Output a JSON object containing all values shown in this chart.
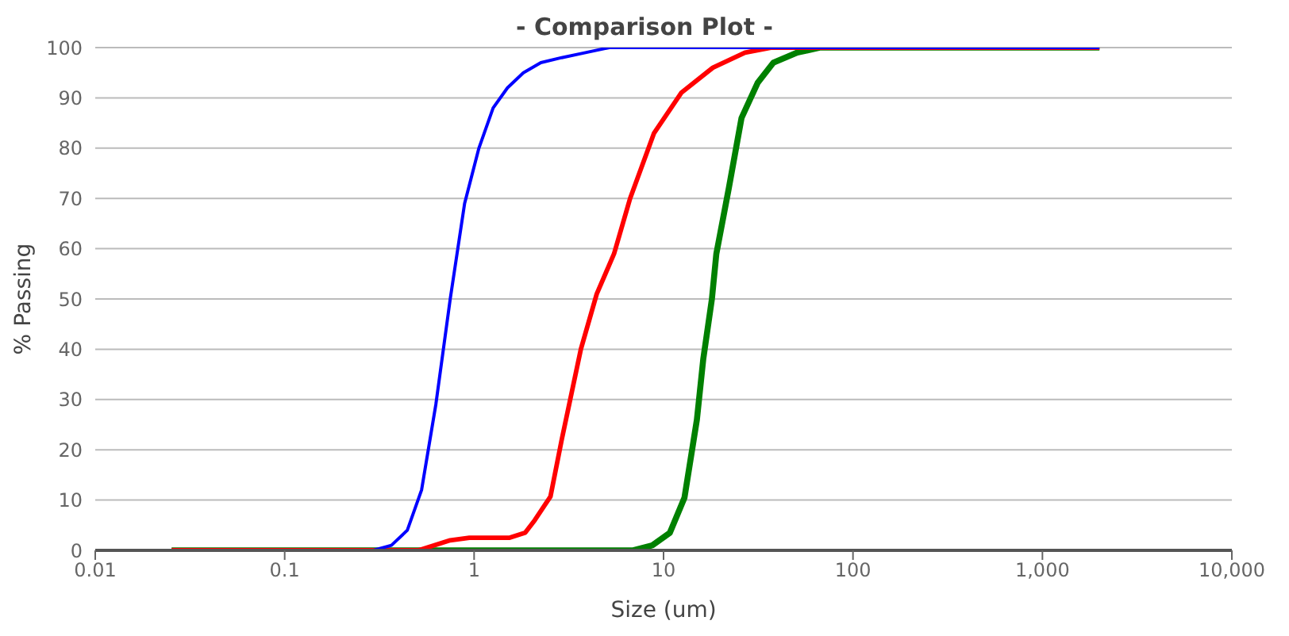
{
  "chart_data": {
    "type": "line",
    "title": "- Comparison Plot -",
    "xlabel": "Size (um)",
    "ylabel": "% Passing",
    "log": "x",
    "grid": "y",
    "xlim": [
      0.01,
      10000
    ],
    "xticks": [
      0.01,
      0.1,
      1,
      10,
      100,
      {
        "value": 1000,
        "label": "1,000"
      },
      {
        "value": 10000,
        "label": "10,000"
      }
    ],
    "ylim": [
      0,
      100
    ],
    "yticks": [
      0,
      10,
      20,
      30,
      40,
      50,
      60,
      70,
      80,
      90,
      100
    ],
    "series": [
      {
        "color": "#0000ff",
        "x": [
          0.0253,
          0.294,
          0.366,
          0.444,
          0.528,
          0.628,
          0.748,
          0.891,
          1.06,
          1.26,
          1.5,
          1.82,
          2.25,
          2.9,
          3.87,
          5.18,
          2000
        ],
        "values": [
          0,
          0,
          1,
          4,
          12,
          29,
          50,
          69,
          80,
          88,
          92,
          95,
          97,
          98,
          99,
          100,
          100
        ]
      },
      {
        "color": "#ff0000",
        "x": [
          0.0253,
          0.508,
          0.748,
          0.944,
          1.53,
          1.86,
          2.09,
          2.53,
          2.9,
          3.66,
          4.44,
          5.48,
          6.66,
          8.91,
          12.4,
          18.2,
          26.9,
          37.3,
          2000
        ],
        "values": [
          0,
          0,
          2,
          2.5,
          2.5,
          3.5,
          6,
          10.7,
          22,
          40,
          51,
          59,
          70,
          83,
          91,
          96,
          99,
          100,
          100
        ]
      },
      {
        "color": "#008000",
        "x": [
          0.0253,
          6.92,
          8.73,
          10.8,
          12.9,
          15.0,
          16.2,
          18.0,
          19.0,
          22.1,
          25.8,
          31.4,
          38.0,
          50.8,
          66.7,
          2000
        ],
        "values": [
          0,
          0,
          1,
          3.5,
          10.5,
          26,
          38,
          50,
          59,
          72,
          86,
          93,
          97,
          99,
          100,
          100
        ]
      }
    ]
  }
}
